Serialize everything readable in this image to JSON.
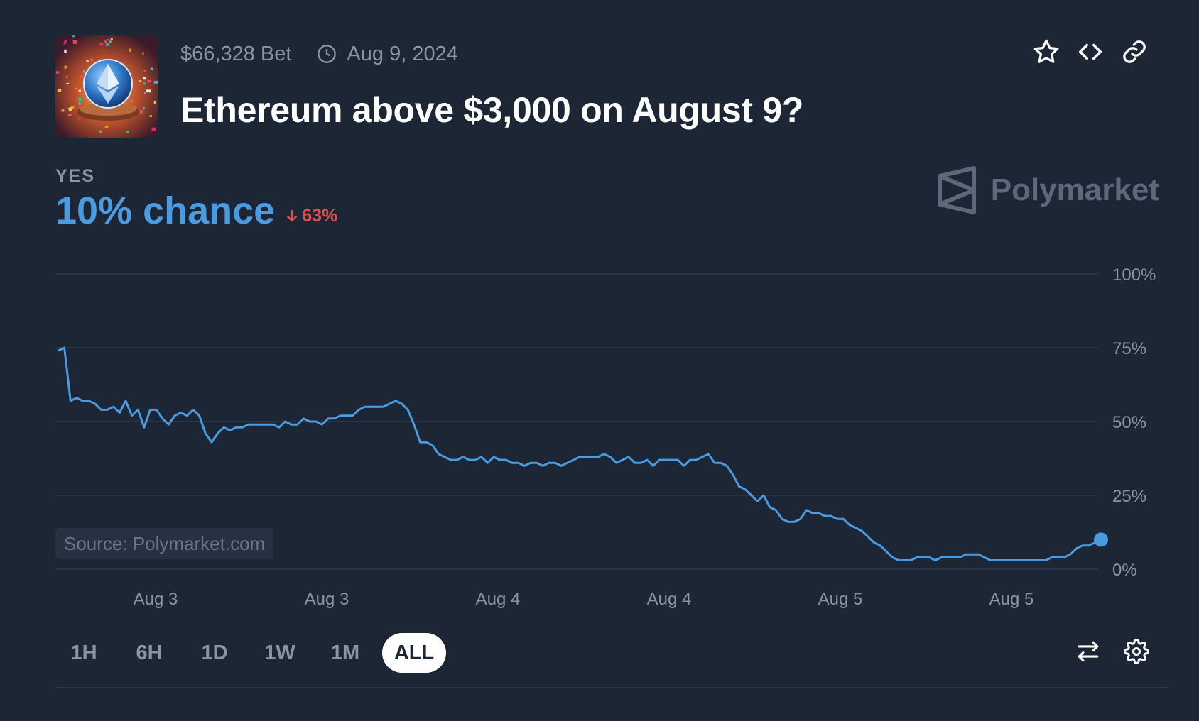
{
  "market": {
    "volume": "$66,328 Bet",
    "date": "Aug 9, 2024",
    "title": "Ethereum above $3,000 on August 9?",
    "outcome": "YES",
    "chance_text": "10% chance",
    "delta_text": "63%",
    "thumbnail_icon": "ethereum-coin-confetti-thumbnail"
  },
  "brand": {
    "name": "Polymarket",
    "logo_icon": "polymarket-logo-icon"
  },
  "source_label": "Source: Polymarket.com",
  "header_actions": [
    {
      "name": "favorite-star-button",
      "icon": "star-icon"
    },
    {
      "name": "embed-code-button",
      "icon": "code-icon"
    },
    {
      "name": "copy-link-button",
      "icon": "link-icon"
    }
  ],
  "time_ranges": [
    "1H",
    "6H",
    "1D",
    "1W",
    "1M",
    "ALL"
  ],
  "active_range": "ALL",
  "tools": [
    {
      "name": "swap-outcome-button",
      "icon": "swap-arrows-icon"
    },
    {
      "name": "chart-settings-button",
      "icon": "gear-icon"
    }
  ],
  "colors": {
    "background": "#1d2635",
    "accent": "#4a9be0",
    "negative": "#e04f4f",
    "muted_text": "#8b94a3",
    "grid": "#2e394a"
  },
  "chart_data": {
    "type": "line",
    "title": "",
    "xlabel": "",
    "ylabel": "",
    "ylim": [
      0,
      100
    ],
    "grid": true,
    "y_ticks": [
      "100%",
      "75%",
      "50%",
      "25%",
      "0%"
    ],
    "x_tick_labels": [
      "Aug 3",
      "Aug 3",
      "Aug 4",
      "Aug 4",
      "Aug 5",
      "Aug 5"
    ],
    "series": [
      {
        "values": [
          74,
          75,
          57,
          58,
          57,
          57,
          56,
          54,
          54,
          55,
          53,
          57,
          52,
          54,
          48,
          54,
          54,
          51,
          49,
          52,
          53,
          52,
          54,
          52,
          46,
          43,
          46,
          48,
          47,
          48,
          48,
          49,
          49,
          49,
          49,
          49,
          48,
          50,
          49,
          49,
          51,
          50,
          50,
          49,
          51,
          51,
          52,
          52,
          52,
          54,
          55,
          55,
          55,
          55,
          56,
          57,
          56,
          54,
          49,
          43,
          43,
          42,
          39,
          38,
          37,
          37,
          38,
          37,
          37,
          38,
          36,
          38,
          37,
          37,
          36,
          36,
          35,
          36,
          36,
          35,
          36,
          36,
          35,
          36,
          37,
          38,
          38,
          38,
          38,
          39,
          38,
          36,
          37,
          38,
          36,
          36,
          37,
          35,
          37,
          37,
          37,
          37,
          35,
          37,
          37,
          38,
          39,
          36,
          36,
          35,
          32,
          28,
          27,
          25,
          23,
          25,
          21,
          20,
          17,
          16,
          16,
          17,
          20,
          19,
          19,
          18,
          18,
          17,
          17,
          15,
          14,
          13,
          11,
          9,
          8,
          6,
          4,
          3,
          3,
          3,
          4,
          4,
          4,
          3,
          4,
          4,
          4,
          4,
          5,
          5,
          5,
          4,
          3,
          3,
          3,
          3,
          3,
          3,
          3,
          3,
          3,
          3,
          4,
          4,
          4,
          5,
          7,
          8,
          8,
          9,
          10
        ]
      }
    ]
  }
}
